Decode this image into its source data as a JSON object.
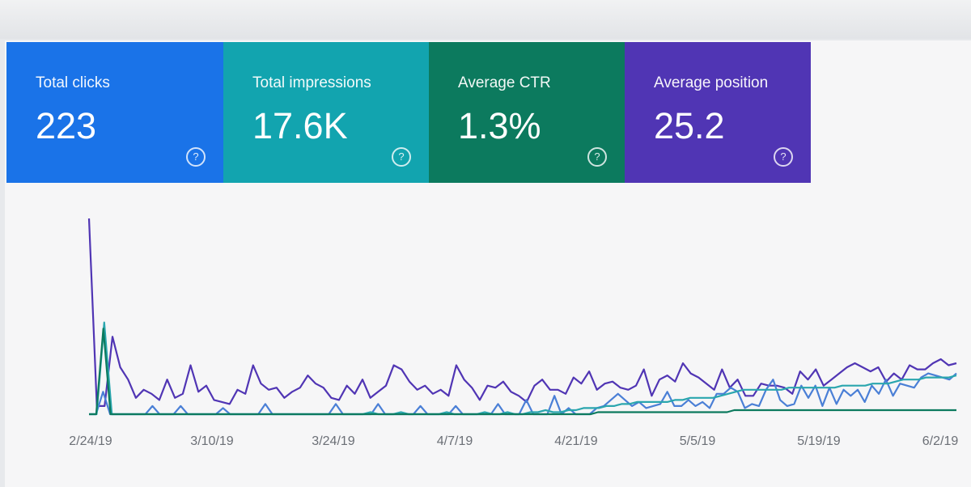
{
  "cards": [
    {
      "label": "Total clicks",
      "value": "223",
      "color": "#1a73e8",
      "help_icon": "help-icon"
    },
    {
      "label": "Total impressions",
      "value": "17.6K",
      "color": "#12a4af",
      "help_icon": "help-icon"
    },
    {
      "label": "Average CTR",
      "value": "1.3%",
      "color": "#0c7a5e",
      "help_icon": "help-icon"
    },
    {
      "label": "Average position",
      "value": "25.2",
      "color": "#5035b4",
      "help_icon": "help-icon"
    }
  ],
  "chart_data": {
    "type": "line",
    "x_ticks": [
      "2/24/19",
      "3/10/19",
      "3/24/19",
      "4/7/19",
      "4/21/19",
      "5/5/19",
      "5/19/19",
      "6/2/19"
    ],
    "grid": false,
    "legend": "none",
    "series": [
      {
        "color": "#5035b4",
        "values": [
          96,
          4,
          4,
          38,
          23,
          17,
          8,
          12,
          10,
          7,
          17,
          8,
          10,
          24,
          11,
          14,
          7,
          6,
          5,
          12,
          10,
          24,
          15,
          12,
          13,
          8,
          11,
          13,
          19,
          15,
          13,
          8,
          7,
          14,
          10,
          17,
          8,
          11,
          14,
          24,
          22,
          16,
          12,
          14,
          10,
          12,
          9,
          24,
          17,
          13,
          7,
          14,
          13,
          16,
          11,
          9,
          6,
          14,
          17,
          12,
          12,
          10,
          18,
          15,
          21,
          12,
          15,
          16,
          13,
          12,
          14,
          22,
          9,
          17,
          19,
          16,
          25,
          20,
          18,
          15,
          12,
          22,
          13,
          17,
          9,
          9,
          15,
          14,
          14,
          13,
          10,
          21,
          17,
          22,
          14,
          17,
          20,
          23,
          25,
          23,
          21,
          23,
          16,
          20,
          17,
          24,
          22,
          22,
          25,
          27,
          24,
          25
        ]
      },
      {
        "color": "#4a7fd6",
        "values": [
          0,
          0,
          11,
          0,
          0,
          0,
          0,
          0,
          0,
          4,
          0,
          0,
          0,
          4,
          0,
          0,
          0,
          0,
          0,
          3,
          0,
          0,
          0,
          0,
          0,
          5,
          0,
          0,
          0,
          0,
          0,
          0,
          0,
          0,
          0,
          5,
          0,
          0,
          0,
          0,
          0,
          5,
          0,
          0,
          0,
          0,
          0,
          4,
          0,
          0,
          0,
          0,
          4,
          0,
          0,
          0,
          0,
          0,
          5,
          0,
          0,
          0,
          7,
          0,
          0,
          0,
          9,
          0,
          3,
          0,
          0,
          0,
          3,
          4,
          7,
          10,
          7,
          4,
          6,
          3,
          4,
          5,
          11,
          4,
          4,
          7,
          4,
          6,
          3,
          10,
          10,
          13,
          11,
          3,
          5,
          4,
          12,
          17,
          7,
          4,
          5,
          14,
          8,
          14,
          4,
          13,
          5,
          12,
          9,
          12,
          6,
          14,
          10,
          17,
          9,
          15,
          14,
          13,
          18,
          20,
          19,
          18,
          17,
          20
        ]
      },
      {
        "color": "#2aa6ae",
        "values": [
          0,
          0,
          45,
          0,
          0,
          0,
          0,
          0,
          0,
          0,
          0,
          0,
          0,
          0,
          0,
          0,
          0,
          0,
          0,
          0,
          0,
          0,
          0,
          0,
          0,
          0,
          0,
          0,
          0,
          0,
          0,
          0,
          0,
          0,
          0,
          0,
          0,
          1,
          0,
          0,
          0,
          1,
          0,
          0,
          0,
          0,
          0,
          1,
          0,
          0,
          0,
          0,
          1,
          0,
          0,
          1,
          0,
          0,
          1,
          1,
          2,
          1,
          1,
          2,
          2,
          3,
          3,
          3,
          4,
          4,
          5,
          5,
          6,
          6,
          6,
          6,
          6,
          7,
          7,
          8,
          8,
          8,
          8,
          9,
          10,
          11,
          12,
          12,
          12,
          12,
          12,
          12,
          13,
          13,
          13,
          13,
          13,
          13,
          13,
          14,
          14,
          14,
          14,
          15,
          15,
          15,
          16,
          17,
          17,
          17,
          18,
          18,
          18,
          18,
          19
        ]
      },
      {
        "color": "#0c7a5e",
        "values": [
          0,
          0,
          42,
          0,
          0,
          0,
          0,
          0,
          0,
          0,
          0,
          0,
          0,
          0,
          0,
          0,
          0,
          0,
          0,
          0,
          0,
          0,
          0,
          0,
          0,
          0,
          0,
          0,
          0,
          0,
          0,
          0,
          0,
          0,
          0,
          0,
          0,
          0,
          0,
          0,
          0,
          0,
          0,
          0,
          0,
          0,
          0,
          0,
          0,
          0,
          0,
          0,
          0,
          0,
          0,
          0,
          0,
          0,
          0,
          0,
          0,
          0,
          0,
          0,
          0,
          0,
          0,
          0,
          0,
          0,
          0,
          1,
          1,
          1,
          1,
          1,
          1,
          1,
          1,
          1,
          1,
          1,
          1,
          1,
          1,
          1,
          1,
          1,
          1,
          1,
          2,
          2,
          2,
          2,
          2,
          2,
          2,
          2,
          2,
          2,
          2,
          2,
          2,
          2,
          2,
          2,
          2,
          2,
          2,
          2,
          2,
          2,
          2,
          2,
          2,
          2,
          2,
          2,
          2,
          2,
          2,
          2
        ]
      }
    ]
  }
}
